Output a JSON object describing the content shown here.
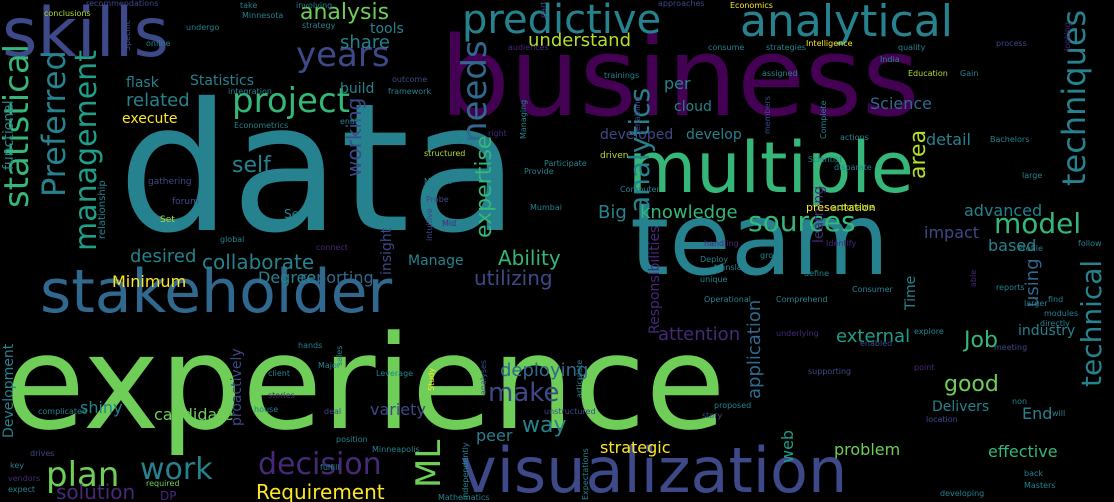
{
  "palette": {
    "purple_dark": "#440154",
    "purple": "#482878",
    "indigo": "#3e4989",
    "blue": "#31688e",
    "teal": "#26828e",
    "teal_green": "#1f9e89",
    "green": "#35b779",
    "light_green": "#6ece58",
    "lime": "#b5de2b",
    "yellow": "#fde725"
  },
  "words": [
    {
      "text": "experience",
      "weight": 1.0,
      "color": "light_green"
    },
    {
      "text": "data",
      "weight": 0.98,
      "color": "teal"
    },
    {
      "text": "business",
      "weight": 0.9,
      "color": "purple_dark"
    },
    {
      "text": "team",
      "weight": 0.8,
      "color": "teal"
    },
    {
      "text": "multiple",
      "weight": 0.72,
      "color": "green"
    },
    {
      "text": "visualization",
      "weight": 0.65,
      "color": "indigo"
    },
    {
      "text": "skills",
      "weight": 0.62,
      "color": "indigo"
    },
    {
      "text": "stakeholder",
      "weight": 0.6,
      "color": "blue"
    },
    {
      "text": "analytical",
      "weight": 0.45,
      "color": "teal"
    },
    {
      "text": "predictive",
      "weight": 0.42,
      "color": "teal"
    },
    {
      "text": "years",
      "weight": 0.34,
      "color": "indigo"
    },
    {
      "text": "needs",
      "weight": 0.34,
      "color": "blue"
    },
    {
      "text": "techniques",
      "weight": 0.32,
      "color": "teal"
    },
    {
      "text": "statistical",
      "weight": 0.32,
      "color": "green"
    },
    {
      "text": "Preferred",
      "weight": 0.3,
      "color": "teal"
    },
    {
      "text": "management",
      "weight": 0.3,
      "color": "teal_green"
    },
    {
      "text": "project",
      "weight": 0.3,
      "color": "green"
    },
    {
      "text": "plan",
      "weight": 0.3,
      "color": "light_green"
    },
    {
      "text": "work",
      "weight": 0.3,
      "color": "teal"
    },
    {
      "text": "decision",
      "weight": 0.3,
      "color": "purple"
    },
    {
      "text": "ML",
      "weight": 0.3,
      "color": "light_green"
    },
    {
      "text": "Requirement",
      "weight": 0.24,
      "color": "yellow"
    },
    {
      "text": "solution",
      "weight": 0.22,
      "color": "purple"
    },
    {
      "text": "analytics",
      "weight": 0.32,
      "color": "teal"
    },
    {
      "text": "technical",
      "weight": 0.28,
      "color": "teal"
    },
    {
      "text": "model",
      "weight": 0.26,
      "color": "green"
    },
    {
      "text": "sources",
      "weight": 0.26,
      "color": "green"
    },
    {
      "text": "Big",
      "weight": 0.16,
      "color": "teal"
    },
    {
      "text": "knowledge",
      "weight": 0.16,
      "color": "green"
    },
    {
      "text": "make",
      "weight": 0.26,
      "color": "indigo"
    },
    {
      "text": "way",
      "weight": 0.2,
      "color": "teal"
    },
    {
      "text": "good",
      "weight": 0.22,
      "color": "light_green"
    },
    {
      "text": "Job",
      "weight": 0.18,
      "color": "green"
    },
    {
      "text": "analysis",
      "weight": 0.18,
      "color": "light_green"
    },
    {
      "text": "share",
      "weight": 0.16,
      "color": "teal"
    },
    {
      "text": "understand",
      "weight": 0.16,
      "color": "lime"
    },
    {
      "text": "related",
      "weight": 0.16,
      "color": "teal"
    },
    {
      "text": "collaborate",
      "weight": 0.18,
      "color": "teal"
    },
    {
      "text": "desired",
      "weight": 0.16,
      "color": "teal"
    },
    {
      "text": "Ability",
      "weight": 0.18,
      "color": "green"
    },
    {
      "text": "expertise",
      "weight": 0.2,
      "color": "green"
    },
    {
      "text": "working",
      "weight": 0.16,
      "color": "indigo"
    },
    {
      "text": "self",
      "weight": 0.16,
      "color": "teal"
    },
    {
      "text": "area",
      "weight": 0.18,
      "color": "lime"
    },
    {
      "text": "using",
      "weight": 0.16,
      "color": "blue"
    },
    {
      "text": "impact",
      "weight": 0.14,
      "color": "indigo"
    },
    {
      "text": "based",
      "weight": 0.14,
      "color": "teal"
    },
    {
      "text": "external",
      "weight": 0.14,
      "color": "teal_green"
    },
    {
      "text": "application",
      "weight": 0.14,
      "color": "blue"
    },
    {
      "text": "deploying",
      "weight": 0.14,
      "color": "blue"
    },
    {
      "text": "utilizing",
      "weight": 0.14,
      "color": "indigo"
    },
    {
      "text": "reporting",
      "weight": 0.12,
      "color": "blue"
    },
    {
      "text": "Degree",
      "weight": 0.12,
      "color": "teal"
    },
    {
      "text": "Minimum",
      "weight": 0.1,
      "color": "yellow"
    },
    {
      "text": "candidate",
      "weight": 0.1,
      "color": "light_green"
    },
    {
      "text": "variety",
      "weight": 0.12,
      "color": "indigo"
    },
    {
      "text": "peer",
      "weight": 0.12,
      "color": "teal"
    },
    {
      "text": "shiny",
      "weight": 0.12,
      "color": "teal"
    },
    {
      "text": "attention",
      "weight": 0.12,
      "color": "purple"
    },
    {
      "text": "strategic",
      "weight": 0.12,
      "color": "yellow"
    },
    {
      "text": "problem",
      "weight": 0.12,
      "color": "light_green"
    },
    {
      "text": "effective",
      "weight": 0.12,
      "color": "green"
    },
    {
      "text": "End",
      "weight": 0.12,
      "color": "teal"
    },
    {
      "text": "web",
      "weight": 0.12,
      "color": "teal_green"
    },
    {
      "text": "Delivers",
      "weight": 0.1,
      "color": "teal"
    },
    {
      "text": "advanced",
      "weight": 0.12,
      "color": "teal"
    },
    {
      "text": "detail",
      "weight": 0.12,
      "color": "teal"
    },
    {
      "text": "Science",
      "weight": 0.12,
      "color": "blue"
    },
    {
      "text": "per",
      "weight": 0.12,
      "color": "teal"
    },
    {
      "text": "cloud",
      "weight": 0.1,
      "color": "teal"
    },
    {
      "text": "developed",
      "weight": 0.1,
      "color": "indigo"
    },
    {
      "text": "develop",
      "weight": 0.1,
      "color": "teal"
    },
    {
      "text": "execute",
      "weight": 0.1,
      "color": "yellow"
    },
    {
      "text": "flask",
      "weight": 0.1,
      "color": "teal"
    },
    {
      "text": "Statistics",
      "weight": 0.1,
      "color": "teal"
    },
    {
      "text": "build",
      "weight": 0.1,
      "color": "teal"
    },
    {
      "text": "tools",
      "weight": 0.1,
      "color": "teal"
    },
    {
      "text": "Manage",
      "weight": 0.1,
      "color": "teal"
    },
    {
      "text": "insight",
      "weight": 0.1,
      "color": "indigo"
    },
    {
      "text": "proactively",
      "weight": 0.1,
      "color": "indigo"
    },
    {
      "text": "learning",
      "weight": 0.1,
      "color": "purple"
    },
    {
      "text": "Responsibilities",
      "weight": 0.1,
      "color": "purple"
    },
    {
      "text": "Time",
      "weight": 0.1,
      "color": "teal"
    },
    {
      "text": "functional",
      "weight": 0.1,
      "color": "teal"
    },
    {
      "text": "Development",
      "weight": 0.1,
      "color": "teal"
    },
    {
      "text": "industry",
      "weight": 0.1,
      "color": "teal"
    },
    {
      "text": "presentation",
      "weight": 0.08,
      "color": "yellow"
    },
    {
      "text": "Seeks",
      "weight": 0.08,
      "color": "teal"
    },
    {
      "text": "Set",
      "weight": 0.07,
      "color": "lime"
    },
    {
      "text": "forum",
      "weight": 0.06,
      "color": "indigo"
    },
    {
      "text": "gathering",
      "weight": 0.06,
      "color": "indigo"
    },
    {
      "text": "relationship",
      "weight": 0.08,
      "color": "teal"
    },
    {
      "text": "structured",
      "weight": 0.06,
      "color": "lime"
    },
    {
      "text": "Provide",
      "weight": 0.06,
      "color": "teal"
    },
    {
      "text": "driven",
      "weight": 0.06,
      "color": "lime"
    },
    {
      "text": "Market",
      "weight": 0.06,
      "color": "teal"
    },
    {
      "text": "Probe",
      "weight": 0.06,
      "color": "indigo"
    },
    {
      "text": "intuitive",
      "weight": 0.06,
      "color": "indigo"
    },
    {
      "text": "Mumbai",
      "weight": 0.06,
      "color": "teal"
    },
    {
      "text": "Computer",
      "weight": 0.06,
      "color": "teal"
    },
    {
      "text": "Scientist",
      "weight": 0.06,
      "color": "teal"
    },
    {
      "text": "disparate",
      "weight": 0.06,
      "color": "teal"
    },
    {
      "text": "large",
      "weight": 0.06,
      "color": "teal"
    },
    {
      "text": "Bachelors",
      "weight": 0.06,
      "color": "teal"
    },
    {
      "text": "actions",
      "weight": 0.06,
      "color": "teal"
    },
    {
      "text": "Intelligence",
      "weight": 0.06,
      "color": "yellow"
    },
    {
      "text": "quality",
      "weight": 0.06,
      "color": "teal"
    },
    {
      "text": "process",
      "weight": 0.06,
      "color": "indigo"
    },
    {
      "text": "India",
      "weight": 0.06,
      "color": "teal"
    },
    {
      "text": "Education",
      "weight": 0.06,
      "color": "lime"
    },
    {
      "text": "Gain",
      "weight": 0.06,
      "color": "teal"
    },
    {
      "text": "assigned",
      "weight": 0.06,
      "color": "teal"
    },
    {
      "text": "consume",
      "weight": 0.06,
      "color": "teal"
    },
    {
      "text": "strategies",
      "weight": 0.06,
      "color": "teal"
    },
    {
      "text": "trainings",
      "weight": 0.06,
      "color": "teal"
    },
    {
      "text": "members",
      "weight": 0.06,
      "color": "indigo"
    },
    {
      "text": "enabling",
      "weight": 0.06,
      "color": "indigo"
    },
    {
      "text": "Managing",
      "weight": 0.06,
      "color": "teal"
    },
    {
      "text": "involving",
      "weight": 0.06,
      "color": "teal"
    },
    {
      "text": "Minnesota",
      "weight": 0.06,
      "color": "teal"
    },
    {
      "text": "strategy",
      "weight": 0.06,
      "color": "teal"
    },
    {
      "text": "take",
      "weight": 0.06,
      "color": "teal"
    },
    {
      "text": "undergo",
      "weight": 0.06,
      "color": "teal"
    },
    {
      "text": "online",
      "weight": 0.06,
      "color": "teal"
    },
    {
      "text": "Specific",
      "weight": 0.06,
      "color": "indigo"
    },
    {
      "text": "recommendations",
      "weight": 0.06,
      "color": "indigo"
    },
    {
      "text": "conclusions",
      "weight": 0.06,
      "color": "lime"
    },
    {
      "text": "integration",
      "weight": 0.06,
      "color": "teal"
    },
    {
      "text": "Econometrics",
      "weight": 0.06,
      "color": "teal"
    },
    {
      "text": "enable",
      "weight": 0.06,
      "color": "teal"
    },
    {
      "text": "outcome",
      "weight": 0.06,
      "color": "indigo"
    },
    {
      "text": "framework",
      "weight": 0.06,
      "color": "teal"
    },
    {
      "text": "Economics",
      "weight": 0.06,
      "color": "yellow"
    },
    {
      "text": "approaches",
      "weight": 0.06,
      "color": "indigo"
    },
    {
      "text": "part",
      "weight": 0.06,
      "color": "indigo"
    },
    {
      "text": "audiences",
      "weight": 0.06,
      "color": "purple"
    },
    {
      "text": "Participate",
      "weight": 0.06,
      "color": "teal"
    },
    {
      "text": "Complete",
      "weight": 0.06,
      "color": "teal"
    },
    {
      "text": "actionable",
      "weight": 0.06,
      "color": "lime"
    },
    {
      "text": "Identify",
      "weight": 0.06,
      "color": "purple"
    },
    {
      "text": "handling",
      "weight": 0.06,
      "color": "purple"
    },
    {
      "text": "Deploy",
      "weight": 0.06,
      "color": "teal"
    },
    {
      "text": "translate",
      "weight": 0.06,
      "color": "teal"
    },
    {
      "text": "unique",
      "weight": 0.06,
      "color": "teal"
    },
    {
      "text": "Operational",
      "weight": 0.06,
      "color": "teal"
    },
    {
      "text": "Comprehend",
      "weight": 0.06,
      "color": "teal"
    },
    {
      "text": "define",
      "weight": 0.06,
      "color": "teal"
    },
    {
      "text": "group",
      "weight": 0.06,
      "color": "teal"
    },
    {
      "text": "Consumer",
      "weight": 0.06,
      "color": "teal"
    },
    {
      "text": "underlying",
      "weight": 0.06,
      "color": "purple"
    },
    {
      "text": "enabled",
      "weight": 0.06,
      "color": "indigo"
    },
    {
      "text": "explore",
      "weight": 0.06,
      "color": "teal"
    },
    {
      "text": "meeting",
      "weight": 0.06,
      "color": "indigo"
    },
    {
      "text": "reports",
      "weight": 0.06,
      "color": "teal"
    },
    {
      "text": "able",
      "weight": 0.06,
      "color": "purple"
    },
    {
      "text": "Profile",
      "weight": 0.06,
      "color": "teal"
    },
    {
      "text": "follow",
      "weight": 0.06,
      "color": "teal"
    },
    {
      "text": "find",
      "weight": 0.06,
      "color": "teal"
    },
    {
      "text": "modules",
      "weight": 0.06,
      "color": "teal"
    },
    {
      "text": "directly",
      "weight": 0.06,
      "color": "teal"
    },
    {
      "text": "non",
      "weight": 0.06,
      "color": "teal"
    },
    {
      "text": "will",
      "weight": 0.06,
      "color": "teal"
    },
    {
      "text": "back",
      "weight": 0.06,
      "color": "teal"
    },
    {
      "text": "Masters",
      "weight": 0.06,
      "color": "teal"
    },
    {
      "text": "developing",
      "weight": 0.06,
      "color": "teal"
    },
    {
      "text": "location",
      "weight": 0.06,
      "color": "indigo"
    },
    {
      "text": "proposed",
      "weight": 0.06,
      "color": "teal"
    },
    {
      "text": "story",
      "weight": 0.06,
      "color": "indigo"
    },
    {
      "text": "supporting",
      "weight": 0.06,
      "color": "indigo"
    },
    {
      "text": "Expectations",
      "weight": 0.06,
      "color": "teal"
    },
    {
      "text": "Mathematics",
      "weight": 0.06,
      "color": "teal"
    },
    {
      "text": "independently",
      "weight": 0.06,
      "color": "teal"
    },
    {
      "text": "unstructured",
      "weight": 0.06,
      "color": "indigo"
    },
    {
      "text": "articulate",
      "weight": 0.06,
      "color": "teal"
    },
    {
      "text": "analyses",
      "weight": 0.06,
      "color": "indigo"
    },
    {
      "text": "Study",
      "weight": 0.06,
      "color": "yellow"
    },
    {
      "text": "Major",
      "weight": 0.06,
      "color": "teal"
    },
    {
      "text": "Leverage",
      "weight": 0.06,
      "color": "teal"
    },
    {
      "text": "Minneapolis",
      "weight": 0.06,
      "color": "teal"
    },
    {
      "text": "fulfill",
      "weight": 0.06,
      "color": "teal"
    },
    {
      "text": "position",
      "weight": 0.06,
      "color": "teal"
    },
    {
      "text": "deal",
      "weight": 0.06,
      "color": "indigo"
    },
    {
      "text": "stories",
      "weight": 0.06,
      "color": "purple"
    },
    {
      "text": "house",
      "weight": 0.06,
      "color": "teal"
    },
    {
      "text": "client",
      "weight": 0.06,
      "color": "teal"
    },
    {
      "text": "hands",
      "weight": 0.06,
      "color": "teal"
    },
    {
      "text": "sales",
      "weight": 0.06,
      "color": "teal"
    },
    {
      "text": "connect",
      "weight": 0.06,
      "color": "purple"
    },
    {
      "text": "global",
      "weight": 0.06,
      "color": "teal"
    },
    {
      "text": "complicated",
      "weight": 0.06,
      "color": "teal"
    },
    {
      "text": "drives",
      "weight": 0.06,
      "color": "indigo"
    },
    {
      "text": "key",
      "weight": 0.06,
      "color": "teal"
    },
    {
      "text": "vendors",
      "weight": 0.06,
      "color": "purple"
    },
    {
      "text": "expect",
      "weight": 0.06,
      "color": "teal"
    },
    {
      "text": "required",
      "weight": 0.12,
      "color": "light_green"
    },
    {
      "text": "DP",
      "weight": 0.06,
      "color": "purple"
    },
    {
      "text": "right",
      "weight": 0.06,
      "color": "purple"
    },
    {
      "text": "larger",
      "weight": 0.06,
      "color": "teal"
    },
    {
      "text": "looking",
      "weight": 0.06,
      "color": "purple"
    },
    {
      "text": "point",
      "weight": 0.06,
      "color": "purple"
    },
    {
      "text": "Mid",
      "weight": 0.06,
      "color": "purple"
    }
  ]
}
